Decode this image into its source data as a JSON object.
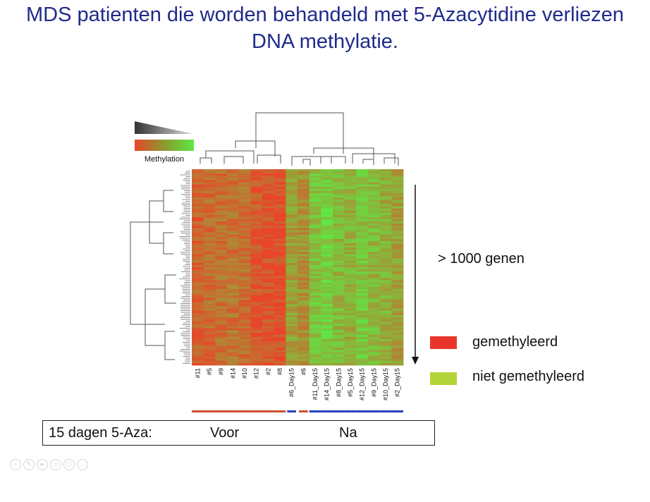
{
  "slide": {
    "title_line1": "MDS patienten die worden behandeld met 5-Azacytidine verliezen",
    "title_line2": "DNA methylatie."
  },
  "colorbar": {
    "label": "Methylation",
    "low_color": "#e8452a",
    "high_color": "#5ee843"
  },
  "heatmap": {
    "columns": [
      "#11",
      "#5",
      "#9",
      "#14",
      "#10",
      "#12",
      "#2",
      "#8",
      "#6_Day15",
      "#6",
      "#11_Day15",
      "#14_Day15",
      "#8_Day15",
      "#5_Day15",
      "#12_Day15",
      "#9_Day15",
      "#10_Day15",
      "#2_Day15"
    ],
    "column_methylation": [
      0.82,
      0.78,
      0.74,
      0.72,
      0.76,
      0.9,
      0.92,
      0.94,
      0.45,
      0.55,
      0.25,
      0.15,
      0.3,
      0.35,
      0.22,
      0.3,
      0.35,
      0.45
    ],
    "group_colors": [
      "#c9512a",
      "#c9512a",
      "#c9512a",
      "#c9512a",
      "#c9512a",
      "#c9512a",
      "#c9512a",
      "#c9512a",
      "#2b3fbf",
      "#c9512a",
      "#2b3fbf",
      "#2b3fbf",
      "#2b3fbf",
      "#2b3fbf",
      "#2b3fbf",
      "#2b3fbf",
      "#2b3fbf",
      "#2b3fbf"
    ],
    "genes_label": "> 1000  genen"
  },
  "legend": {
    "items": [
      {
        "label": "gemethyleerd",
        "color": "#e8352a"
      },
      {
        "label": "niet gemethyleerd",
        "color": "#b5d43a"
      }
    ]
  },
  "timing_box": {
    "label": "15 dagen 5-Aza:",
    "before": "Voor",
    "after": "Na"
  },
  "icons": [
    "zoom-icon",
    "pen-icon",
    "play-icon",
    "slide-icon",
    "magnifier-icon",
    "more-icon"
  ]
}
